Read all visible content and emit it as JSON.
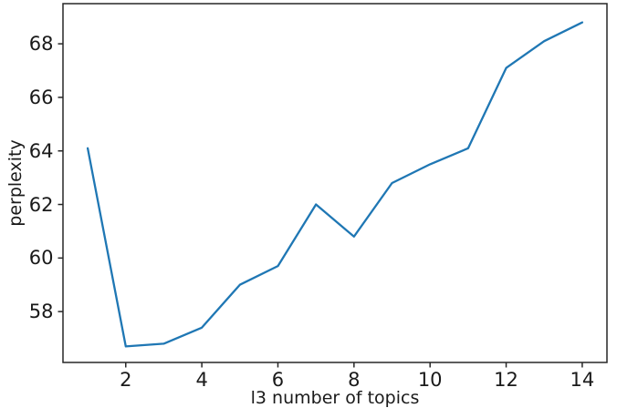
{
  "figure": {
    "background": "#ffffff",
    "text_color": "#1a1a1a",
    "axis_color": "#262626"
  },
  "chart_data": {
    "type": "line",
    "title": "",
    "xlabel": "l3 number of topics",
    "ylabel": "perplexity",
    "x": [
      1,
      2,
      3,
      4,
      5,
      6,
      7,
      8,
      9,
      10,
      11,
      12,
      13,
      14
    ],
    "series": [
      {
        "name": "perplexity",
        "color": "#1f77b4",
        "values": [
          64.1,
          56.7,
          56.8,
          57.4,
          59.0,
          59.7,
          62.0,
          60.8,
          62.8,
          63.5,
          64.1,
          67.1,
          68.1,
          68.8
        ]
      }
    ],
    "xticks": [
      2,
      4,
      6,
      8,
      10,
      12,
      14
    ],
    "yticks": [
      58,
      60,
      62,
      64,
      66,
      68
    ],
    "xtick_labels": [
      "2",
      "4",
      "6",
      "8",
      "10",
      "12",
      "14"
    ],
    "ytick_labels": [
      "58",
      "60",
      "62",
      "64",
      "66",
      "68"
    ],
    "xlim": [
      0.35,
      14.65
    ],
    "ylim": [
      56.1,
      69.5
    ],
    "grid": false,
    "legend": "none"
  }
}
